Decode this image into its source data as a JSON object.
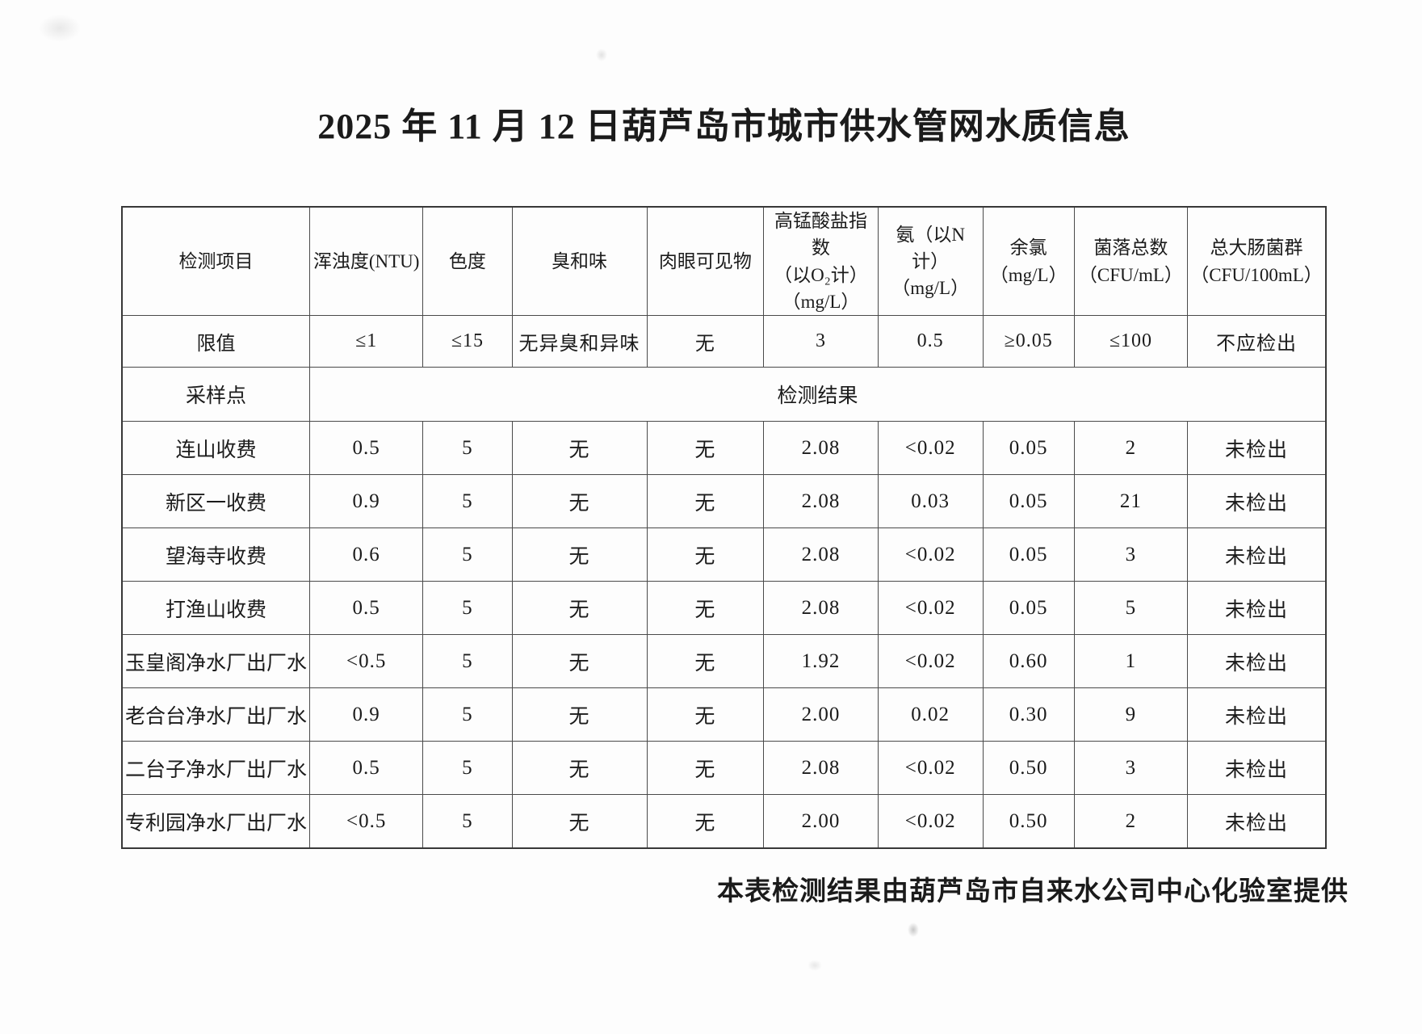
{
  "page": {
    "title": "2025 年 11 月 12 日葫芦岛市城市供水管网水质信息",
    "footer_note": "本表检测结果由葫芦岛市自来水公司中心化验室提供"
  },
  "colors": {
    "paper": "#fdfdfd",
    "text": "#1b1b1b",
    "table_border": "#4a4a4a"
  },
  "table": {
    "header": {
      "item_label": "检测项目",
      "columns": [
        "浑浊度(NTU)",
        "色度",
        "臭和味",
        "肉眼可见物",
        "高锰酸盐指数\n（以O₂计）\n（mg/L）",
        "氨（以N计）\n（mg/L）",
        "余氯\n（mg/L）",
        "菌落总数\n（CFU/mL）",
        "总大肠菌群\n（CFU/100mL）"
      ]
    },
    "limits": {
      "label": "限值",
      "values": [
        "≤1",
        "≤15",
        "无异臭和异味",
        "无",
        "3",
        "0.5",
        "≥0.05",
        "≤100",
        "不应检出"
      ]
    },
    "sampling": {
      "label": "采样点",
      "merged_label": "检测结果"
    },
    "rows": [
      {
        "site": "连山收费",
        "values": [
          "0.5",
          "5",
          "无",
          "无",
          "2.08",
          "<0.02",
          "0.05",
          "2",
          "未检出"
        ]
      },
      {
        "site": "新区一收费",
        "values": [
          "0.9",
          "5",
          "无",
          "无",
          "2.08",
          "0.03",
          "0.05",
          "21",
          "未检出"
        ]
      },
      {
        "site": "望海寺收费",
        "values": [
          "0.6",
          "5",
          "无",
          "无",
          "2.08",
          "<0.02",
          "0.05",
          "3",
          "未检出"
        ]
      },
      {
        "site": "打渔山收费",
        "values": [
          "0.5",
          "5",
          "无",
          "无",
          "2.08",
          "<0.02",
          "0.05",
          "5",
          "未检出"
        ]
      },
      {
        "site": "玉皇阁净水厂出厂水",
        "values": [
          "<0.5",
          "5",
          "无",
          "无",
          "1.92",
          "<0.02",
          "0.60",
          "1",
          "未检出"
        ]
      },
      {
        "site": "老合台净水厂出厂水",
        "values": [
          "0.9",
          "5",
          "无",
          "无",
          "2.00",
          "0.02",
          "0.30",
          "9",
          "未检出"
        ]
      },
      {
        "site": "二台子净水厂出厂水",
        "values": [
          "0.5",
          "5",
          "无",
          "无",
          "2.08",
          "<0.02",
          "0.50",
          "3",
          "未检出"
        ]
      },
      {
        "site": "专利园净水厂出厂水",
        "values": [
          "<0.5",
          "5",
          "无",
          "无",
          "2.00",
          "<0.02",
          "0.50",
          "2",
          "未检出"
        ]
      }
    ]
  }
}
